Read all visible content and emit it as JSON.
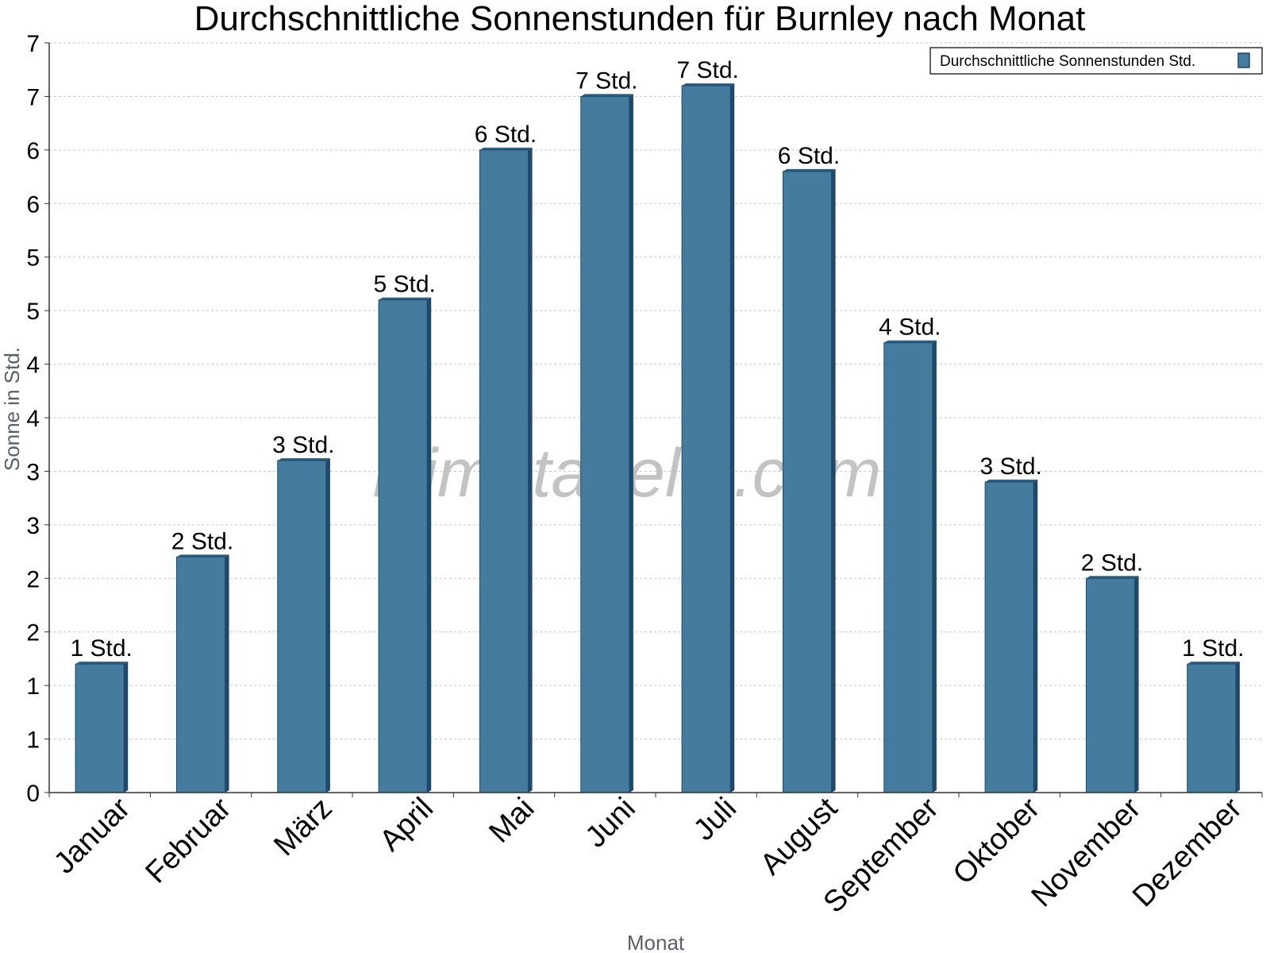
{
  "watermark": "klimatabelle.com",
  "colors": {
    "bar_face": "#457b9d",
    "bar_side": "#1d4a6c",
    "bar_top": "#2a5f85",
    "grid": "#c8c8c8",
    "axis": "#333333"
  },
  "chart_data": {
    "type": "bar",
    "title": "Durchschnittliche Sonnenstunden für Burnley nach Monat",
    "xlabel": "Monat",
    "ylabel": "Sonne in Std.",
    "categories": [
      "Januar",
      "Februar",
      "März",
      "April",
      "Mai",
      "Juni",
      "Juli",
      "August",
      "September",
      "Oktober",
      "November",
      "Dezember"
    ],
    "series": [
      {
        "name": "Durchschnittliche Sonnenstunden Std.",
        "values": [
          1.2,
          2.2,
          3.1,
          4.6,
          6.0,
          6.5,
          6.6,
          5.8,
          4.2,
          2.9,
          2.0,
          1.2
        ],
        "labels": [
          "1 Std.",
          "2 Std.",
          "3 Std.",
          "5 Std.",
          "6 Std.",
          "7 Std.",
          "7 Std.",
          "6 Std.",
          "4 Std.",
          "3 Std.",
          "2 Std.",
          "1 Std."
        ]
      }
    ],
    "ylim": [
      0,
      7
    ],
    "yticks": [
      0,
      0.5,
      1,
      1.5,
      2,
      2.5,
      3,
      3.5,
      4,
      4.5,
      5,
      5.5,
      6,
      6.5,
      7
    ],
    "ytick_labels": [
      "0",
      "1",
      "1",
      "2",
      "2",
      "3",
      "3",
      "4",
      "4",
      "5",
      "5",
      "6",
      "6",
      "7",
      "7"
    ],
    "grid": true,
    "legend_position": "top-right"
  }
}
